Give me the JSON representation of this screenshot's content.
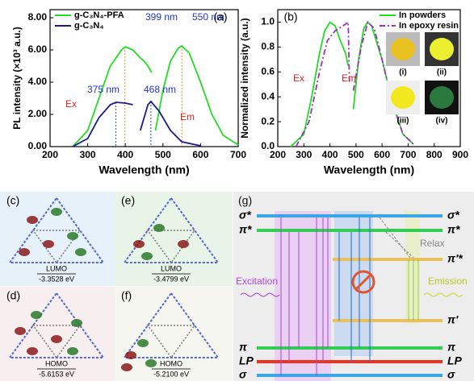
{
  "chart_data": [
    {
      "type": "line",
      "panel_label": "(a)",
      "x_label": "Wavelength (nm)",
      "y_label": "PL intensity (×10³ a.u.)",
      "xlim": [
        200,
        700
      ],
      "xticks": [
        200,
        300,
        400,
        500,
        600,
        700
      ],
      "ylim": [
        0,
        8.5
      ],
      "yticks": [
        {
          "value": 0,
          "label": "0.00"
        },
        {
          "value": 2,
          "label": "2.00"
        },
        {
          "value": 4,
          "label": "4.00"
        },
        {
          "value": 6,
          "label": "6.00"
        },
        {
          "value": 8,
          "label": "8.00"
        }
      ],
      "legend": "upper left",
      "series": [
        {
          "name": "g-C₃N₄-PFA",
          "color": "#22dd22",
          "line_style": "solid",
          "x": [
            260,
            300,
            330,
            360,
            390,
            400,
            420,
            440,
            450,
            460,
            470,
            470,
            480,
            500,
            520,
            540,
            550,
            570,
            600,
            630,
            660,
            700
          ],
          "values": [
            0,
            1,
            3,
            5,
            6,
            6.2,
            6,
            5.5,
            5.3,
            5,
            4.6,
            null,
            1,
            3.5,
            5.3,
            6.1,
            6.25,
            5.8,
            4,
            2,
            0.7,
            0.1
          ]
        },
        {
          "name": "g-C₃N₄",
          "color": "#1a1a8c",
          "line_style": "solid",
          "x": [
            260,
            300,
            330,
            360,
            375,
            400,
            420,
            420,
            440,
            460,
            468,
            490,
            520,
            550,
            600
          ],
          "values": [
            0,
            0.5,
            1.8,
            2.6,
            2.75,
            2.7,
            2.6,
            null,
            1,
            2.6,
            2.8,
            2.2,
            1,
            0.3,
            0.05
          ]
        }
      ],
      "annotations": [
        {
          "text": "399 nm",
          "color": "#2233cc"
        },
        {
          "text": "550 nm",
          "color": "#2233cc"
        },
        {
          "text": "375 nm",
          "color": "#2233cc"
        },
        {
          "text": "468 nm",
          "color": "#2233cc"
        },
        {
          "text": "Ex",
          "color": "#dd2222"
        },
        {
          "text": "Em",
          "color": "#dd2222"
        }
      ]
    },
    {
      "type": "line",
      "panel_label": "(b)",
      "x_label": "Wavelength (nm)",
      "y_label": "Normalized intensity (a.u.)",
      "xlim": [
        200,
        900
      ],
      "xticks": [
        200,
        300,
        400,
        500,
        600,
        700,
        800,
        900
      ],
      "ylim": [
        0,
        1.1
      ],
      "yticks": [
        {
          "value": 0,
          "label": "0.0"
        },
        {
          "value": 0.2,
          "label": "0.2"
        },
        {
          "value": 0.4,
          "label": "0.4"
        },
        {
          "value": 0.6,
          "label": "0.6"
        },
        {
          "value": 0.8,
          "label": "0.8"
        },
        {
          "value": 1,
          "label": "1.0"
        }
      ],
      "legend": "upper right",
      "series": [
        {
          "name": "In powders",
          "color": "#22dd22",
          "line_style": "solid",
          "x": [
            250,
            300,
            330,
            360,
            380,
            400,
            420,
            440,
            460,
            470,
            470,
            490,
            510,
            530,
            545,
            560,
            600,
            640,
            680,
            720
          ],
          "values": [
            0,
            0.1,
            0.4,
            0.75,
            0.93,
            1,
            0.97,
            0.85,
            0.75,
            0.65,
            null,
            0.3,
            0.7,
            0.95,
            1,
            0.97,
            0.7,
            0.35,
            0.1,
            0.02
          ]
        },
        {
          "name": "In epoxy resin",
          "color": "#9933bb",
          "line_style": "dash-dot",
          "x": [
            270,
            320,
            360,
            390,
            420,
            450,
            470,
            475,
            475,
            490,
            520,
            545,
            570,
            600,
            640,
            680,
            720
          ],
          "values": [
            0,
            0.2,
            0.6,
            0.85,
            0.93,
            0.97,
            1,
            0.5,
            null,
            0.45,
            0.8,
            1,
            0.95,
            0.7,
            0.35,
            0.1,
            0.02
          ]
        }
      ],
      "annotations": [
        {
          "text": "Ex",
          "color": "#dd2222"
        },
        {
          "text": "Em",
          "color": "#dd2222"
        }
      ],
      "insets": [
        "(i)",
        "(ii)",
        "(iii)",
        "(iv)"
      ]
    }
  ],
  "orbitals": [
    {
      "panel_label": "(c)",
      "orbital": "LUMO",
      "energy": "-3.3528 eV"
    },
    {
      "panel_label": "(e)",
      "orbital": "LUMO",
      "energy": "-3.4799 eV"
    },
    {
      "panel_label": "(d)",
      "orbital": "HOMO",
      "energy": "-5.6153 eV"
    },
    {
      "panel_label": "(f)",
      "orbital": "HOMO",
      "energy": "-5.2100 eV"
    }
  ],
  "diagram": {
    "panel_label": "(g)",
    "relax": "Relax",
    "excitation": "Excitation",
    "emission": "Emission",
    "levels": [
      {
        "left": "σ*",
        "right": "σ*"
      },
      {
        "left": "π*",
        "right": "π*"
      },
      {
        "right": "π'*"
      },
      {
        "right": "π'"
      },
      {
        "left": "π",
        "right": "π"
      },
      {
        "left": "LP",
        "right": "LP"
      },
      {
        "left": "σ",
        "right": "σ"
      }
    ]
  }
}
